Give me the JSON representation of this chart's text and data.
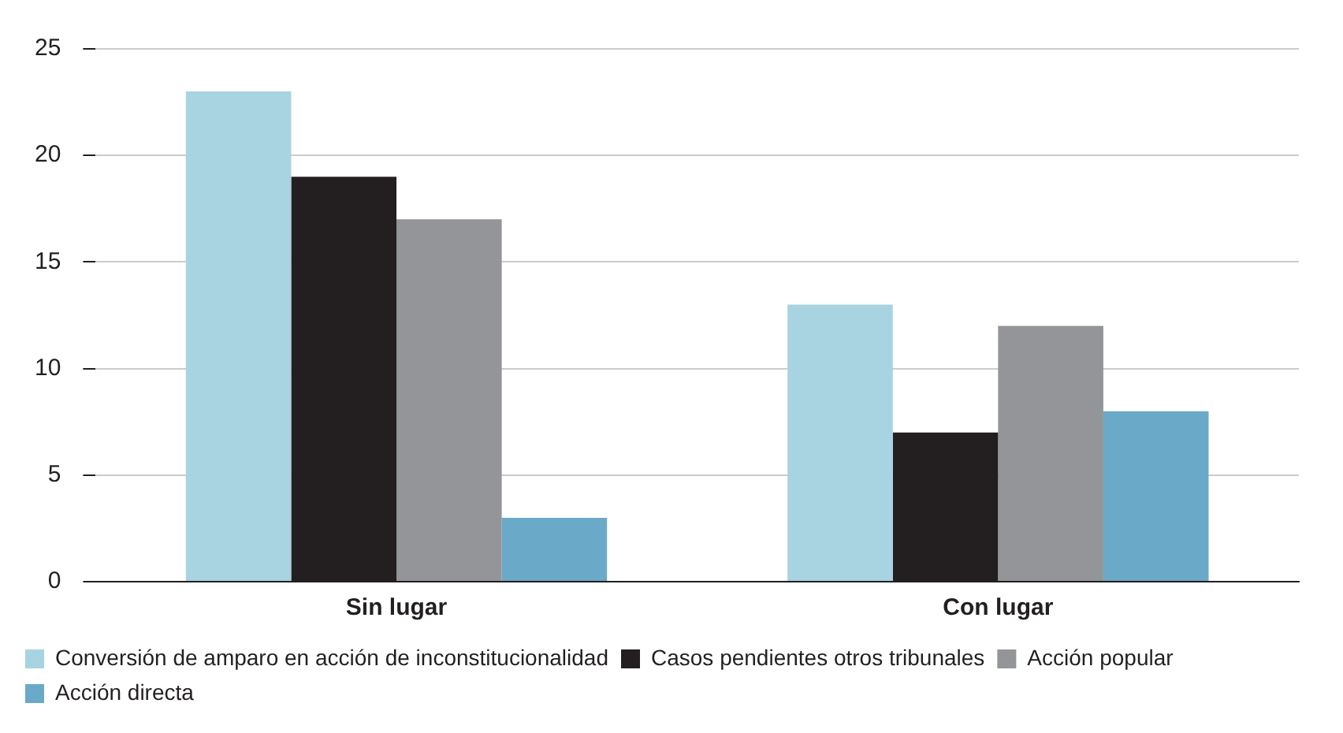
{
  "chart_data": {
    "type": "bar",
    "categories": [
      "Sin lugar",
      "Con lugar"
    ],
    "series": [
      {
        "name": "Conversión de amparo en acción de inconstitucionalidad",
        "color": "#a8d3e0",
        "values": [
          23,
          13
        ]
      },
      {
        "name": "Casos pendientes otros tribunales",
        "color": "#231f20",
        "values": [
          19,
          7
        ]
      },
      {
        "name": "Acción popular",
        "color": "#939598",
        "values": [
          17,
          12
        ]
      },
      {
        "name": "Acción directa",
        "color": "#6aaac8",
        "values": [
          3,
          8
        ]
      }
    ],
    "ylim": [
      0,
      25
    ],
    "yticks": [
      0,
      5,
      10,
      15,
      20,
      25
    ],
    "grid": "y",
    "legend": "bottom"
  }
}
